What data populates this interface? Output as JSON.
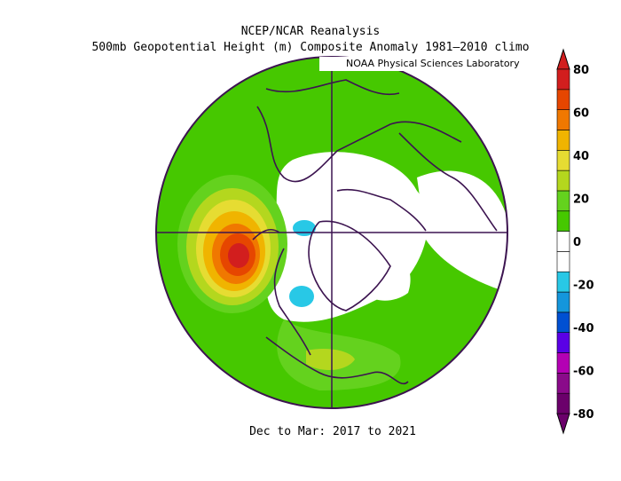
{
  "title_line1": "NCEP/NCAR Reanalysis",
  "title_line2": "500mb Geopotential Height (m) Composite Anomaly 1981–2010 climo",
  "credit": "NOAA Physical Sciences Laboratory",
  "footer": "Dec to Mar: 2017 to 2021",
  "colorbar": {
    "labels": [
      "80",
      "60",
      "40",
      "20",
      "0",
      "-20",
      "-40",
      "-60",
      "-80"
    ],
    "colors": [
      "#6b006b",
      "#8a0a8a",
      "#b400b4",
      "#5a00e6",
      "#0050d2",
      "#1496dc",
      "#28c8e6",
      "#ffffff",
      "#ffffff",
      "#46c800",
      "#64d21e",
      "#b4d71e",
      "#e6dc32",
      "#f0b400",
      "#f07800",
      "#e64600",
      "#d21e1e"
    ]
  },
  "map": {
    "projection": "polar-stereographic",
    "anomaly_pattern": "positive-high-over-NE-Pacific"
  }
}
